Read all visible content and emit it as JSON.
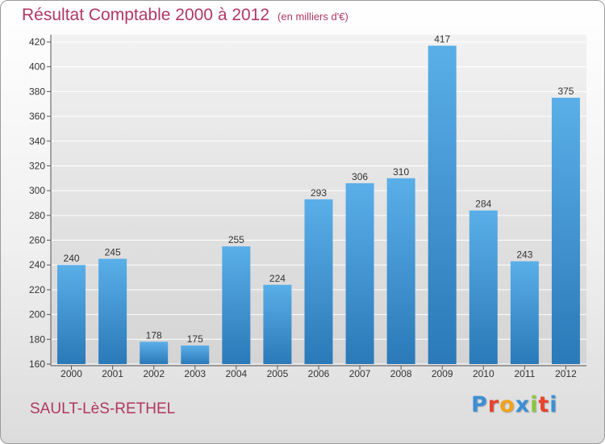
{
  "chart_data": {
    "type": "bar",
    "title": "Résultat Comptable 2000 à 2012",
    "subtitle": "(en milliers d'€)",
    "categories": [
      "2000",
      "2001",
      "2002",
      "2003",
      "2004",
      "2005",
      "2006",
      "2007",
      "2008",
      "2009",
      "2010",
      "2011",
      "2012"
    ],
    "values": [
      240,
      245,
      178,
      175,
      255,
      224,
      293,
      306,
      310,
      417,
      284,
      243,
      375
    ],
    "ylim": [
      160,
      420
    ],
    "yticks": [
      160,
      180,
      200,
      220,
      240,
      260,
      280,
      300,
      320,
      340,
      360,
      380,
      400,
      420
    ],
    "grid": true,
    "xlabel": "",
    "ylabel": "",
    "bar_color_top": "#5aafe8",
    "bar_color_bottom": "#2b79b8"
  },
  "footer": {
    "commune": "SAULT-LèS-RETHEL",
    "logo_letters": [
      "P",
      "r",
      "o",
      "x",
      "i",
      "t",
      "i"
    ],
    "logo_colors": [
      "#3b8fd6",
      "#e8432d",
      "#f2a31b",
      "#3b8fd6",
      "#8cc63f",
      "#e8432d",
      "#3b8fd6"
    ]
  },
  "colors": {
    "accent": "#b0385f"
  }
}
